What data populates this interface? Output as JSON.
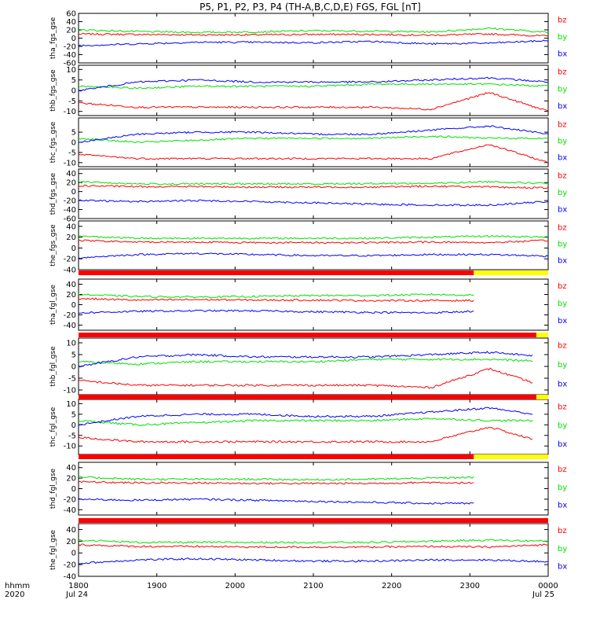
{
  "chart_data": {
    "type": "line",
    "title": "P5, P1, P2, P3, P4 (TH-A,B,C,D,E) FGS, FGL [nT]",
    "colors": {
      "bx": "#0000ff",
      "by": "#00e000",
      "bz": "#ff0000",
      "bar_red": "#ff0000",
      "bar_yellow": "#ffff00",
      "bar_black": "#000000"
    },
    "x": {
      "ticks": [
        "1800",
        "1900",
        "2000",
        "2100",
        "2200",
        "2300",
        "0000"
      ],
      "tick_hours": [
        18,
        19,
        20,
        21,
        22,
        23,
        24
      ],
      "range_hours": [
        18,
        24
      ],
      "date_left": "Jul 24",
      "date_right": "Jul 25",
      "corner_top": "hhmm",
      "corner_bottom": "2020"
    },
    "legend": [
      "bz",
      "by",
      "bx"
    ],
    "panels": [
      {
        "ylabel": "tha_fgs_gse",
        "ylim": [
          -60,
          60
        ],
        "yticks": [
          60,
          40,
          20,
          0,
          -20,
          -40,
          -60
        ],
        "end": 24,
        "series": [
          {
            "name": "bz",
            "values": [
              10,
              9,
              8,
              8,
              9,
              9,
              7,
              10,
              5
            ]
          },
          {
            "name": "by",
            "values": [
              20,
              16,
              14,
              15,
              18,
              17,
              15,
              24,
              14
            ]
          },
          {
            "name": "bx",
            "values": [
              -18,
              -14,
              -10,
              -10,
              -11,
              -8,
              -14,
              -12,
              -6
            ]
          }
        ]
      },
      {
        "ylabel": "thb_fgs_gse",
        "ylim": [
          -12,
          12
        ],
        "yticks": [
          10,
          5,
          0,
          -5,
          -10
        ],
        "end": 24,
        "series": [
          {
            "name": "bz",
            "values": [
              -6,
              -8,
              -8,
              -8,
              -8,
              -8,
              -9,
              -1,
              -10
            ]
          },
          {
            "name": "by",
            "values": [
              2,
              1,
              2,
              2,
              2,
              3,
              3,
              3,
              2
            ]
          },
          {
            "name": "bx",
            "values": [
              0,
              4,
              5,
              4,
              4,
              4,
              5,
              6,
              4
            ]
          }
        ]
      },
      {
        "ylabel": "thc_fgs_gse",
        "ylim": [
          -12,
          12
        ],
        "yticks": [
          5,
          0,
          -5,
          -10
        ],
        "end": 24,
        "series": [
          {
            "name": "bz",
            "values": [
              -6,
              -8,
              -8,
              -8,
              -8,
              -8,
              -8,
              -1,
              -10
            ]
          },
          {
            "name": "by",
            "values": [
              2,
              0,
              1,
              2,
              2,
              2,
              3,
              2,
              2
            ]
          },
          {
            "name": "bx",
            "values": [
              0,
              4,
              5,
              5,
              4,
              4,
              6,
              8,
              4
            ]
          }
        ]
      },
      {
        "ylabel": "thd_fgs_gse",
        "ylim": [
          -60,
          50
        ],
        "yticks": [
          40,
          20,
          0,
          -20,
          -40,
          -60
        ],
        "end": 24,
        "series": [
          {
            "name": "bz",
            "values": [
              13,
              11,
              11,
              10,
              10,
              10,
              12,
              10,
              8
            ]
          },
          {
            "name": "by",
            "values": [
              22,
              17,
              17,
              17,
              17,
              18,
              18,
              22,
              18
            ]
          },
          {
            "name": "bx",
            "values": [
              -20,
              -22,
              -20,
              -22,
              -25,
              -28,
              -30,
              -30,
              -22
            ]
          }
        ]
      },
      {
        "ylabel": "the_fgs_gse",
        "ylim": [
          -40,
          50
        ],
        "yticks": [
          40,
          20,
          0,
          -20,
          -40
        ],
        "end": 24,
        "series": [
          {
            "name": "bz",
            "values": [
              14,
              11,
              11,
              10,
              10,
              10,
              11,
              10,
              14
            ]
          },
          {
            "name": "by",
            "values": [
              22,
              18,
              18,
              18,
              18,
              18,
              20,
              22,
              20
            ]
          },
          {
            "name": "bx",
            "values": [
              -18,
              -12,
              -10,
              -12,
              -14,
              -14,
              -12,
              -12,
              -15
            ]
          }
        ]
      },
      {
        "ylabel": "tha_fgl_gse",
        "ylim": [
          -50,
          50
        ],
        "yticks": [
          40,
          20,
          0,
          -20,
          -40
        ],
        "end": 23.05,
        "series": [
          {
            "name": "bz",
            "values": [
              12,
              9,
              10,
              9,
              9,
              8,
              8,
              8,
              8
            ]
          },
          {
            "name": "by",
            "values": [
              20,
              16,
              15,
              16,
              18,
              18,
              20,
              18,
              16
            ]
          },
          {
            "name": "bx",
            "values": [
              -16,
              -13,
              -12,
              -12,
              -14,
              -15,
              -16,
              -12,
              -14
            ]
          }
        ]
      },
      {
        "ylabel": "thb_fgl_gse",
        "ylim": [
          -12,
          12
        ],
        "yticks": [
          10,
          5,
          0,
          -5,
          -10
        ],
        "end": 23.8,
        "series": [
          {
            "name": "bz",
            "values": [
              -6,
              -8,
              -8,
              -8,
              -8,
              -8,
              -9,
              -1,
              -9
            ]
          },
          {
            "name": "by",
            "values": [
              2,
              1,
              2,
              2,
              2,
              3,
              3,
              3,
              2
            ]
          },
          {
            "name": "bx",
            "values": [
              0,
              4,
              5,
              4,
              4,
              4,
              5,
              6,
              4
            ]
          }
        ]
      },
      {
        "ylabel": "thc_fgl_gse",
        "ylim": [
          -14,
          12
        ],
        "yticks": [
          10,
          5,
          0,
          -5,
          -10
        ],
        "end": 23.8,
        "series": [
          {
            "name": "bz",
            "values": [
              -6,
              -8,
              -8,
              -8,
              -8,
              -8,
              -8,
              -1,
              -9
            ]
          },
          {
            "name": "by",
            "values": [
              2,
              0,
              1,
              2,
              2,
              2,
              3,
              2,
              2
            ]
          },
          {
            "name": "bx",
            "values": [
              0,
              4,
              5,
              5,
              4,
              4,
              6,
              8,
              4
            ]
          }
        ]
      },
      {
        "ylabel": "thd_fgl_gse",
        "ylim": [
          -50,
          50
        ],
        "yticks": [
          40,
          20,
          0,
          -20,
          -40
        ],
        "end": 23.05,
        "series": [
          {
            "name": "bz",
            "values": [
              13,
              11,
              11,
              10,
              10,
              10,
              12,
              10,
              10
            ]
          },
          {
            "name": "by",
            "values": [
              22,
              18,
              18,
              18,
              17,
              18,
              20,
              22,
              20
            ]
          },
          {
            "name": "bx",
            "values": [
              -20,
              -22,
              -20,
              -22,
              -24,
              -26,
              -28,
              -28,
              -26
            ]
          }
        ]
      },
      {
        "ylabel": "the_fgl_gse",
        "ylim": [
          -40,
          50
        ],
        "yticks": [
          40,
          20,
          0,
          -20,
          -40
        ],
        "end": 24,
        "series": [
          {
            "name": "bz",
            "values": [
              14,
              11,
              11,
              10,
              10,
              10,
              11,
              10,
              14
            ]
          },
          {
            "name": "by",
            "values": [
              22,
              18,
              18,
              18,
              18,
              18,
              20,
              22,
              20
            ]
          },
          {
            "name": "bx",
            "values": [
              -18,
              -12,
              -10,
              -12,
              -14,
              -14,
              -12,
              -12,
              -15
            ]
          }
        ]
      }
    ]
  }
}
